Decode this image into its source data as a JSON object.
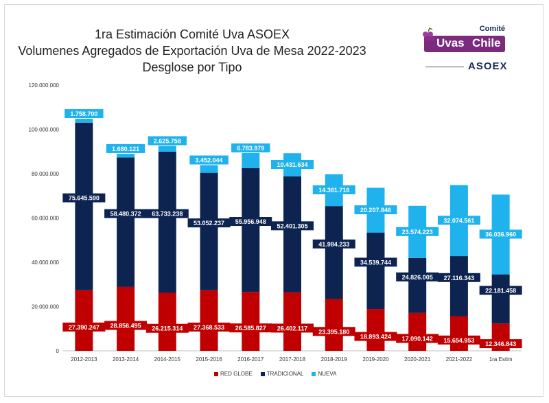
{
  "header": {
    "title_line1": "1ra Estimación Comité Uva ASOEX",
    "title_line2": "Volumenes Agregados de Exportación Uva de Mesa 2022-2023",
    "title_line3": "Desglose por Tipo"
  },
  "logo": {
    "comite": "Comité",
    "uvas": "Uvas",
    "chile": "Chile",
    "asoex": "ASOEX",
    "grape_color": "#7b2a7e"
  },
  "colors": {
    "red_globe": "#c00000",
    "tradicional": "#0d2451",
    "nueva": "#1fb2ec",
    "label_text": "#ffffff"
  },
  "chart_data": {
    "type": "bar",
    "stacked": true,
    "categories": [
      "2012-2013",
      "2013-2014",
      "2014-2015",
      "2015-2016",
      "2016-2017",
      "2017-2018",
      "2018-2019",
      "2019-2020",
      "2020-2021",
      "2021-2022",
      "1ra Estim"
    ],
    "series": [
      {
        "name": "RED GLOBE",
        "values": [
          27390247,
          28856495,
          26215314,
          27368533,
          26585827,
          26402117,
          23395180,
          18893424,
          17090142,
          15654953,
          12346843
        ],
        "labels": [
          "27.390.247",
          "28.856.495",
          "26.215.314",
          "27.368.533",
          "26.585.827",
          "26.402.117",
          "23.395.180",
          "18.893.424",
          "17.090.142",
          "15.654.953",
          "12.346.843"
        ]
      },
      {
        "name": "TRADICIONAL",
        "values": [
          75645590,
          58480372,
          63733238,
          53052237,
          55956948,
          52401305,
          41984233,
          34539744,
          24826005,
          27116343,
          22181458
        ],
        "labels": [
          "75.645.590",
          "58.480.372",
          "63.733.238",
          "53.052.237",
          "55.956.948",
          "52.401.305",
          "41.984.233",
          "34.539.744",
          "24.826.005",
          "27.116.343",
          "22.181.458"
        ]
      },
      {
        "name": "NUEVA",
        "values": [
          1758700,
          1680121,
          2625758,
          3452044,
          6783979,
          10431634,
          14361716,
          20207846,
          23574223,
          32074561,
          36036960
        ],
        "labels": [
          "1.758.700",
          "1.680.121",
          "2.625.758",
          "3.452.044",
          "6.783.979",
          "10.431.634",
          "14.361.716",
          "20.207.846",
          "23.574.223",
          "32.074.561",
          "36.036.960"
        ]
      }
    ],
    "ylim": [
      0,
      120000000
    ],
    "yticks": [
      0,
      20000000,
      40000000,
      60000000,
      80000000,
      100000000,
      120000000
    ],
    "ytick_labels": [
      "0",
      "20.000.000",
      "40.000.000",
      "60.000.000",
      "80.000.000",
      "100.000.000",
      "120.000.000"
    ],
    "xlabel": "",
    "ylabel": "",
    "grid": false,
    "legend": "bottom"
  }
}
